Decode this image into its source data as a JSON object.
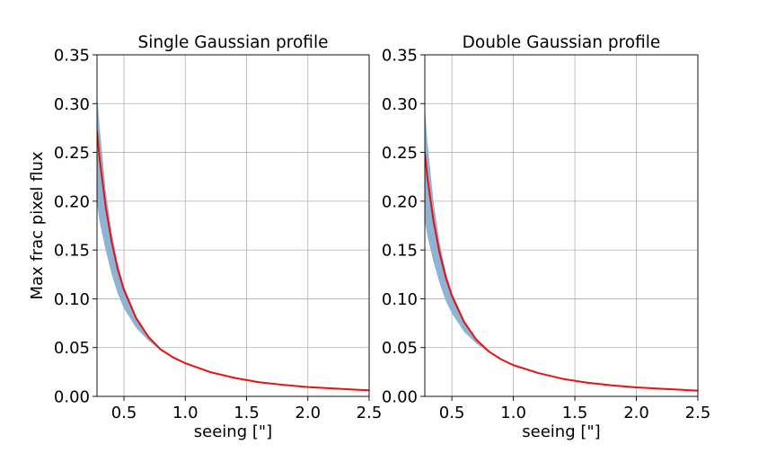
{
  "chart_data": [
    {
      "type": "line",
      "title": "Single Gaussian profile",
      "xlabel": "seeing [\"]",
      "ylabel": "Max frac pixel flux",
      "xlim": [
        0.28,
        2.5
      ],
      "ylim": [
        0,
        0.35
      ],
      "xticks": [
        0.5,
        1.0,
        1.5,
        2.0,
        2.5
      ],
      "xtick_labels": [
        "0.5",
        "1.0",
        "1.5",
        "2.0",
        "2.5"
      ],
      "yticks": [
        0.0,
        0.05,
        0.1,
        0.15,
        0.2,
        0.25,
        0.3,
        0.35
      ],
      "ytick_labels": [
        "0.00",
        "0.05",
        "0.10",
        "0.15",
        "0.20",
        "0.25",
        "0.30",
        "0.35"
      ],
      "grid": true,
      "colors": {
        "line": "#e8120c",
        "band": "#8fb3d4"
      },
      "series": [
        {
          "kind": "line",
          "x": [
            0.28,
            0.3,
            0.35,
            0.4,
            0.45,
            0.5,
            0.6,
            0.7,
            0.8,
            0.9,
            1.0,
            1.2,
            1.4,
            1.6,
            1.8,
            2.0,
            2.2,
            2.4,
            2.5
          ],
          "y": [
            0.272,
            0.245,
            0.195,
            0.158,
            0.13,
            0.109,
            0.08,
            0.061,
            0.048,
            0.04,
            0.034,
            0.025,
            0.019,
            0.0145,
            0.0118,
            0.0096,
            0.0082,
            0.0068,
            0.0062
          ]
        },
        {
          "kind": "band",
          "x": [
            0.28,
            0.3,
            0.35,
            0.4,
            0.45,
            0.5,
            0.6,
            0.7,
            0.8,
            0.85
          ],
          "y_low": [
            0.198,
            0.18,
            0.15,
            0.125,
            0.105,
            0.09,
            0.07,
            0.057,
            0.047,
            0.044
          ],
          "y_high": [
            0.312,
            0.278,
            0.212,
            0.168,
            0.136,
            0.113,
            0.082,
            0.062,
            0.049,
            0.044
          ]
        }
      ]
    },
    {
      "type": "line",
      "title": "Double Gaussian profile",
      "xlabel": "seeing [\"]",
      "ylabel": "",
      "xlim": [
        0.28,
        2.5
      ],
      "ylim": [
        0,
        0.35
      ],
      "xticks": [
        0.5,
        1.0,
        1.5,
        2.0,
        2.5
      ],
      "xtick_labels": [
        "0.5",
        "1.0",
        "1.5",
        "2.0",
        "2.5"
      ],
      "yticks": [
        0.0,
        0.05,
        0.1,
        0.15,
        0.2,
        0.25,
        0.3,
        0.35
      ],
      "ytick_labels": [
        "0.00",
        "0.05",
        "0.10",
        "0.15",
        "0.20",
        "0.25",
        "0.30",
        "0.35"
      ],
      "grid": true,
      "colors": {
        "line": "#e8120c",
        "band": "#8fb3d4"
      },
      "series": [
        {
          "kind": "line",
          "x": [
            0.28,
            0.3,
            0.35,
            0.4,
            0.45,
            0.5,
            0.6,
            0.7,
            0.8,
            0.9,
            1.0,
            1.2,
            1.4,
            1.6,
            1.8,
            2.0,
            2.2,
            2.4,
            2.5
          ],
          "y": [
            0.25,
            0.225,
            0.18,
            0.147,
            0.122,
            0.103,
            0.076,
            0.058,
            0.046,
            0.038,
            0.032,
            0.024,
            0.018,
            0.014,
            0.0113,
            0.0092,
            0.0078,
            0.0065,
            0.0059
          ]
        },
        {
          "kind": "band",
          "x": [
            0.28,
            0.3,
            0.35,
            0.4,
            0.45,
            0.5,
            0.6,
            0.7,
            0.8,
            0.85
          ],
          "y_low": [
            0.18,
            0.165,
            0.138,
            0.116,
            0.098,
            0.085,
            0.066,
            0.054,
            0.045,
            0.042
          ],
          "y_high": [
            0.298,
            0.262,
            0.2,
            0.158,
            0.128,
            0.107,
            0.078,
            0.059,
            0.047,
            0.042
          ]
        }
      ]
    }
  ]
}
